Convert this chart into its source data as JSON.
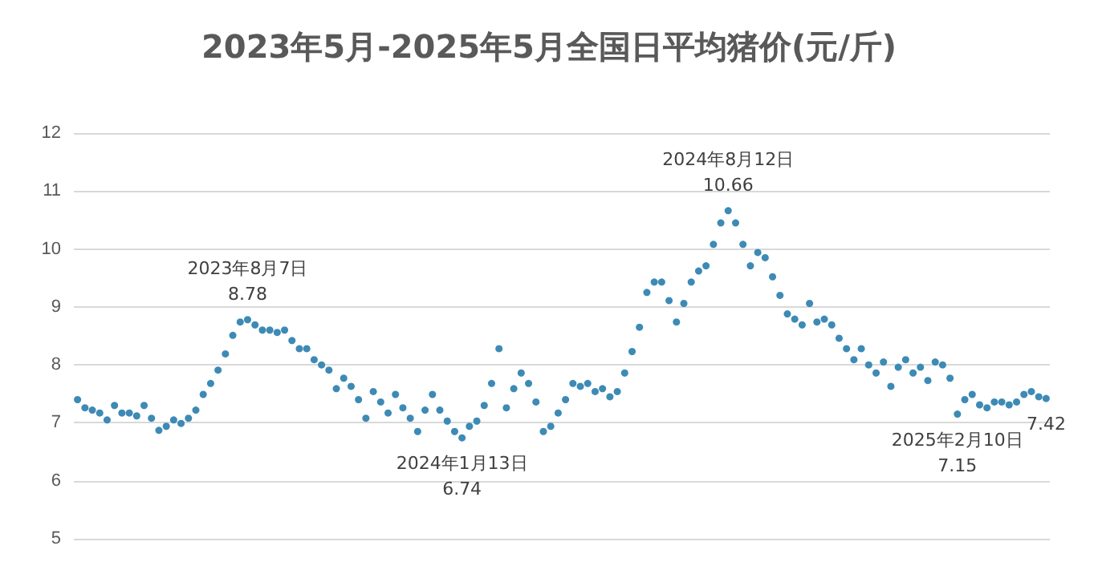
{
  "chart_data": {
    "type": "scatter",
    "title": "2023年5月-2025年5月全国日平均猪价(元/斤)",
    "marker": "circle",
    "grid": "y",
    "tick_labels": "y",
    "ylim": [
      5,
      12
    ],
    "yticks": [
      5,
      6,
      7,
      8,
      9,
      10,
      11,
      12
    ],
    "categories": [
      null,
      null,
      null,
      null,
      null,
      null,
      null,
      null,
      null,
      null,
      null,
      null,
      null,
      null,
      null,
      null,
      null,
      null,
      null,
      null,
      null,
      null,
      null,
      null,
      null,
      null,
      null,
      null,
      null,
      null,
      null,
      null,
      null,
      null,
      null,
      null,
      null,
      null,
      null,
      null,
      null,
      null,
      null,
      null,
      null,
      null,
      null,
      null,
      null,
      null,
      null,
      null,
      null,
      null,
      null,
      null,
      null,
      null,
      null,
      null,
      null,
      null,
      null,
      null,
      null,
      null,
      null,
      null,
      null,
      null,
      null,
      null,
      null,
      null,
      null,
      null,
      null,
      null,
      null,
      null,
      null,
      null,
      null,
      null,
      null,
      null,
      null,
      null,
      null,
      null,
      null,
      null,
      null,
      null,
      null,
      null,
      null,
      null,
      null,
      null,
      null,
      null,
      null,
      null,
      null,
      null,
      null,
      null,
      null,
      null,
      null,
      null,
      null,
      null,
      null,
      null,
      null,
      null,
      null,
      null,
      null,
      null,
      null,
      null,
      null,
      null,
      null,
      null,
      null,
      null,
      null,
      null
    ],
    "series": [
      {
        "color": "#3d8ab5",
        "values": [
          7.4,
          7.26,
          7.22,
          7.17,
          7.05,
          7.3,
          7.17,
          7.17,
          7.12,
          7.3,
          7.08,
          6.87,
          6.94,
          7.05,
          6.99,
          7.08,
          7.22,
          7.49,
          7.68,
          7.91,
          8.19,
          8.51,
          8.74,
          8.78,
          8.69,
          8.6,
          8.6,
          8.56,
          8.6,
          8.42,
          8.28,
          8.28,
          8.09,
          8.0,
          7.91,
          7.59,
          7.77,
          7.63,
          7.4,
          7.08,
          7.54,
          7.36,
          7.17,
          7.49,
          7.26,
          7.08,
          6.85,
          7.22,
          7.49,
          7.22,
          7.03,
          6.85,
          6.74,
          6.94,
          7.03,
          7.3,
          7.68,
          8.28,
          7.26,
          7.59,
          7.86,
          7.68,
          7.36,
          6.85,
          6.94,
          7.17,
          7.4,
          7.68,
          7.63,
          7.68,
          7.54,
          7.59,
          7.45,
          7.54,
          7.86,
          8.23,
          8.65,
          9.25,
          9.43,
          9.43,
          9.11,
          8.74,
          9.06,
          9.43,
          9.62,
          9.71,
          10.08,
          10.45,
          10.66,
          10.45,
          10.08,
          9.71,
          9.94,
          9.85,
          9.52,
          9.2,
          8.88,
          8.79,
          8.69,
          9.06,
          8.74,
          8.79,
          8.69,
          8.46,
          8.28,
          8.09,
          8.28,
          8.0,
          7.86,
          8.05,
          7.63,
          7.96,
          8.09,
          7.86,
          7.96,
          7.73,
          8.05,
          8.0,
          7.77,
          7.15,
          7.4,
          7.49,
          7.31,
          7.26,
          7.36,
          7.36,
          7.31,
          7.36,
          7.49,
          7.54,
          7.45,
          7.42
        ]
      }
    ],
    "annotations": [
      {
        "text": "2023年8月7日\n8.78",
        "y": 8.78
      },
      {
        "text": "2024年1月13日\n6.74",
        "y": 6.74
      },
      {
        "text": "2024年8月12日\n10.66",
        "y": 10.66
      },
      {
        "text": "2025年2月10日\n7.15",
        "y": 7.15
      },
      {
        "text": "7.42",
        "y": 7.42
      }
    ]
  }
}
